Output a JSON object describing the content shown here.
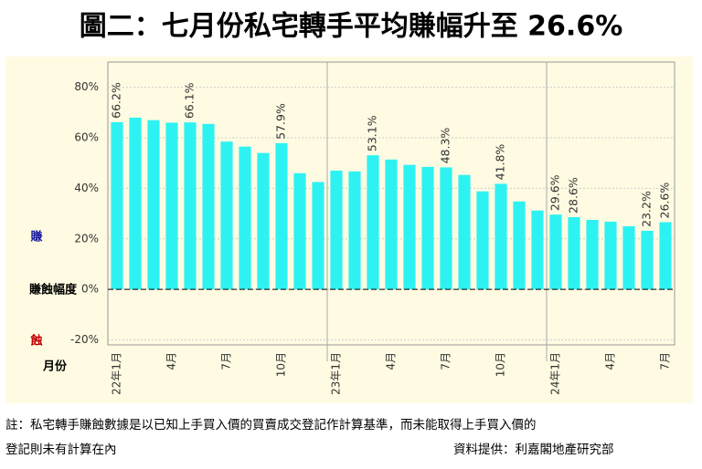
{
  "chart_data": {
    "type": "bar",
    "title": "圖二：七月份私宅轉手平均賺幅升至 26.6%",
    "gain_label": "賺",
    "y_label": "賺蝕幅度",
    "loss_label": "蝕",
    "x_label": "月份",
    "categories": [
      "22年1月",
      null,
      null,
      "4月",
      null,
      null,
      "7月",
      null,
      null,
      "10月",
      null,
      null,
      "23年1月",
      null,
      null,
      "4月",
      null,
      null,
      "7月",
      null,
      null,
      "10月",
      null,
      null,
      "24年1月",
      null,
      null,
      "4月",
      null,
      null,
      "7月"
    ],
    "values": [
      66.2,
      68,
      67,
      66,
      66.1,
      65.5,
      58.5,
      56.5,
      54,
      57.9,
      46,
      42.5,
      47,
      46.7,
      53.1,
      51.4,
      49.3,
      48.5,
      48.3,
      45.3,
      38.8,
      41.8,
      34.8,
      31.2,
      29.6,
      28.6,
      27.5,
      26.8,
      25,
      23.2,
      26.6
    ],
    "value_labels": [
      "66.2%",
      null,
      null,
      null,
      "66.1%",
      null,
      null,
      null,
      null,
      "57.9%",
      null,
      null,
      null,
      null,
      "53.1%",
      null,
      null,
      null,
      "48.3%",
      null,
      null,
      "41.8%",
      null,
      null,
      "29.6%",
      "28.6%",
      null,
      null,
      null,
      "23.2%",
      "26.6%"
    ],
    "color": "#2ef2f2",
    "ylim": [
      -22,
      90
    ],
    "yticks": [
      {
        "value": -20,
        "label": "-20%"
      },
      {
        "value": 0,
        "label": "0%"
      },
      {
        "value": 20,
        "label": "20%"
      },
      {
        "value": 40,
        "label": "40%"
      },
      {
        "value": 60,
        "label": "60%"
      },
      {
        "value": 80,
        "label": "80%"
      }
    ],
    "grid": true
  },
  "footer": {
    "note_lines": [
      "註：私宅轉手賺蝕數據是以已知上手買入價的買賣成交登記作計算基準，而未能取得上手買入價的",
      "登記則未有計算在內"
    ],
    "source": "資料提供：利嘉閣地產研究部"
  }
}
